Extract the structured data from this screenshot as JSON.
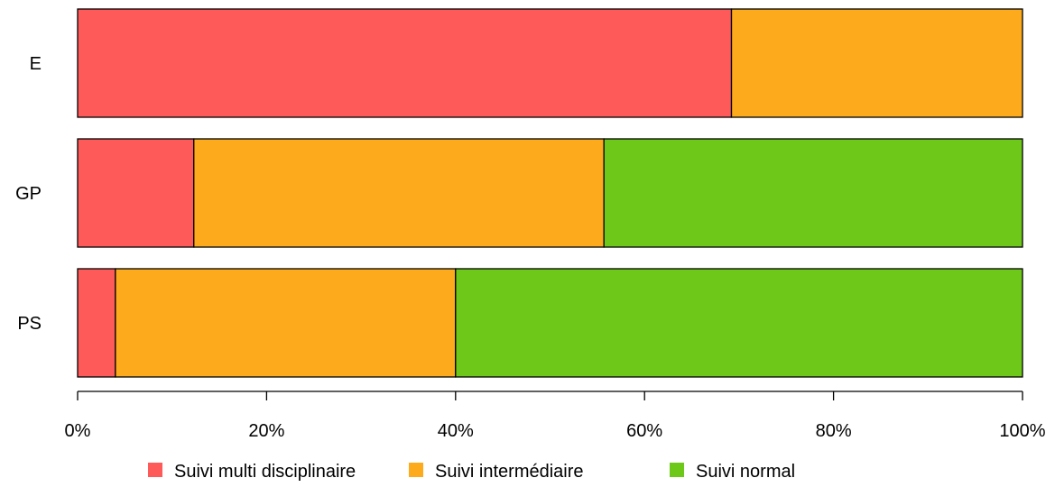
{
  "chart_data": {
    "type": "bar",
    "orientation": "horizontal",
    "stacked": true,
    "categories": [
      "E",
      "GP",
      "PS"
    ],
    "series": [
      {
        "name": "Suivi multi disciplinaire",
        "color": "#ff5a5a",
        "values": [
          69.2,
          12.3,
          4.0
        ]
      },
      {
        "name": "Suivi intermédiaire",
        "color": "#fdab1d",
        "values": [
          30.8,
          43.4,
          36.0
        ]
      },
      {
        "name": "Suivi normal",
        "color": "#6ec81a",
        "values": [
          0.0,
          44.3,
          60.0
        ]
      }
    ],
    "xlim": [
      0,
      100
    ],
    "xticks": [
      0,
      20,
      40,
      60,
      80,
      100
    ],
    "xtick_labels": [
      "0%",
      "20%",
      "40%",
      "60%",
      "80%",
      "100%"
    ],
    "legend_position": "bottom",
    "grid": false
  }
}
